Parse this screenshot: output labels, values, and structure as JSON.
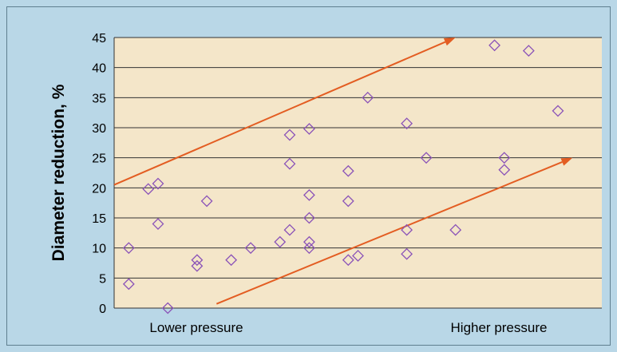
{
  "chart_data": {
    "type": "scatter",
    "title": "",
    "ylabel": "Diameter reduction, %",
    "xlabel": "",
    "ylim": [
      0,
      45
    ],
    "yticks": [
      0,
      5,
      10,
      15,
      20,
      25,
      30,
      35,
      40,
      45
    ],
    "x_category_labels": [
      "Lower pressure",
      "Higher pressure"
    ],
    "grid": true,
    "colors": {
      "plot_bg": "#f4e6c9",
      "outer_bg": "#b9d7e7",
      "marker": "#8a52b8",
      "arrow": "#e35d22",
      "grid": "#333333"
    },
    "series": [
      {
        "marker": "diamond",
        "points": [
          {
            "x": 0.03,
            "y": 10
          },
          {
            "x": 0.03,
            "y": 4
          },
          {
            "x": 0.07,
            "y": 19.8
          },
          {
            "x": 0.09,
            "y": 20.7
          },
          {
            "x": 0.09,
            "y": 14
          },
          {
            "x": 0.11,
            "y": 0
          },
          {
            "x": 0.17,
            "y": 8
          },
          {
            "x": 0.17,
            "y": 7
          },
          {
            "x": 0.19,
            "y": 17.8
          },
          {
            "x": 0.24,
            "y": 8
          },
          {
            "x": 0.28,
            "y": 10
          },
          {
            "x": 0.34,
            "y": 11
          },
          {
            "x": 0.36,
            "y": 28.8
          },
          {
            "x": 0.36,
            "y": 24
          },
          {
            "x": 0.36,
            "y": 13
          },
          {
            "x": 0.4,
            "y": 29.8
          },
          {
            "x": 0.4,
            "y": 18.8
          },
          {
            "x": 0.4,
            "y": 15
          },
          {
            "x": 0.4,
            "y": 11
          },
          {
            "x": 0.4,
            "y": 10
          },
          {
            "x": 0.48,
            "y": 22.8
          },
          {
            "x": 0.48,
            "y": 17.8
          },
          {
            "x": 0.48,
            "y": 8
          },
          {
            "x": 0.5,
            "y": 8.7
          },
          {
            "x": 0.52,
            "y": 35
          },
          {
            "x": 0.6,
            "y": 30.7
          },
          {
            "x": 0.6,
            "y": 13
          },
          {
            "x": 0.6,
            "y": 9
          },
          {
            "x": 0.64,
            "y": 25
          },
          {
            "x": 0.7,
            "y": 13
          },
          {
            "x": 0.78,
            "y": 43.7
          },
          {
            "x": 0.8,
            "y": 25
          },
          {
            "x": 0.8,
            "y": 23
          },
          {
            "x": 0.85,
            "y": 42.8
          },
          {
            "x": 0.91,
            "y": 32.8
          }
        ]
      }
    ],
    "arrows": [
      {
        "x1": 0.0,
        "y1": 20.5,
        "x2": 0.7,
        "y2": 45
      },
      {
        "x1": 0.21,
        "y1": 0.7,
        "x2": 0.94,
        "y2": 25
      }
    ]
  }
}
